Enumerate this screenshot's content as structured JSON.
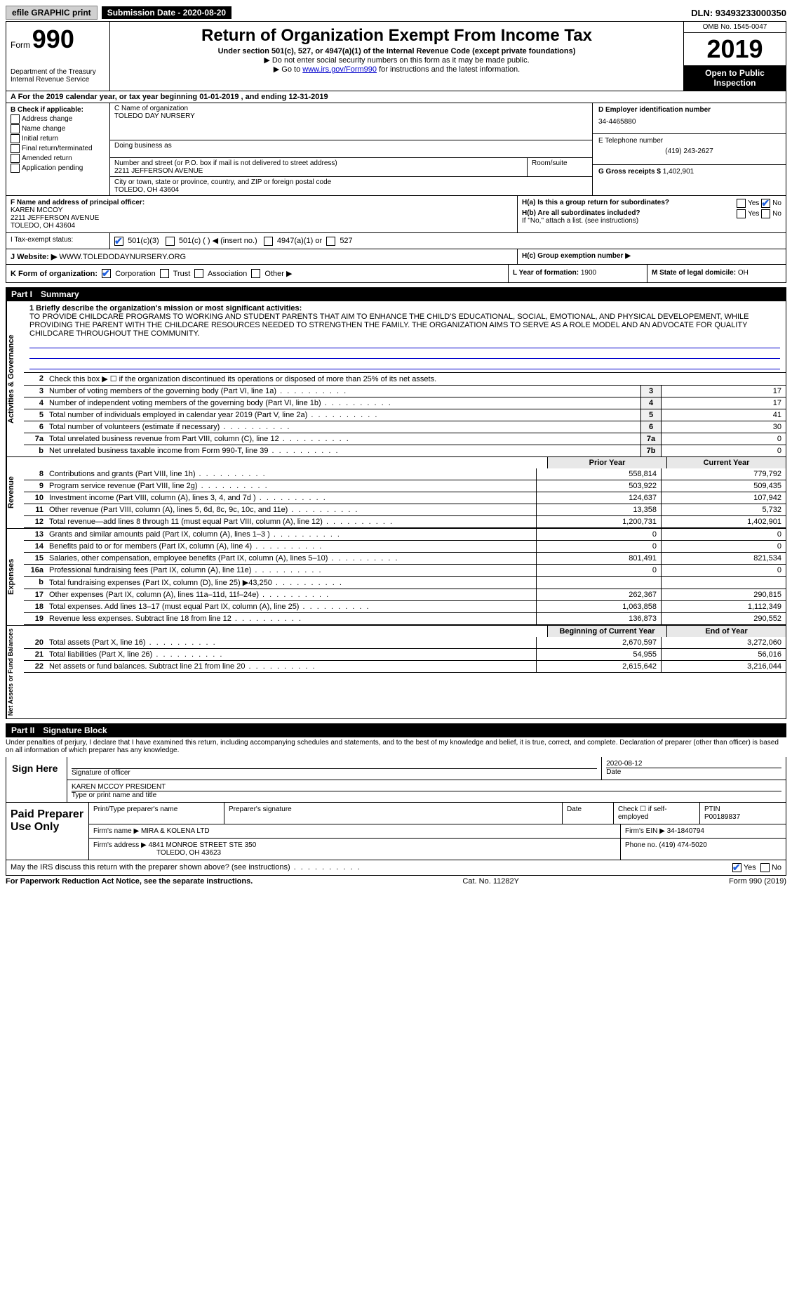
{
  "topbar": {
    "efile_label": "efile GRAPHIC print",
    "submission_date_label": "Submission Date - 2020-08-20",
    "dln_label": "DLN: 93493233000350"
  },
  "header": {
    "form_prefix": "Form",
    "form_number": "990",
    "dept": "Department of the Treasury\nInternal Revenue Service",
    "title": "Return of Organization Exempt From Income Tax",
    "subtitle": "Under section 501(c), 527, or 4947(a)(1) of the Internal Revenue Code (except private foundations)",
    "note1": "▶ Do not enter social security numbers on this form as it may be made public.",
    "note2_prefix": "▶ Go to ",
    "note2_link": "www.irs.gov/Form990",
    "note2_suffix": " for instructions and the latest information.",
    "omb": "OMB No. 1545-0047",
    "year": "2019",
    "open_public": "Open to Public Inspection"
  },
  "tax_year_line": "A For the 2019 calendar year, or tax year beginning 01-01-2019   , and ending 12-31-2019",
  "box_b": {
    "header": "B Check if applicable:",
    "items": [
      "Address change",
      "Name change",
      "Initial return",
      "Final return/terminated",
      "Amended return",
      "Application pending"
    ]
  },
  "box_c": {
    "name_label": "C Name of organization",
    "name": "TOLEDO DAY NURSERY",
    "dba_label": "Doing business as",
    "addr_label": "Number and street (or P.O. box if mail is not delivered to street address)",
    "addr": "2211 JEFFERSON AVENUE",
    "room_label": "Room/suite",
    "city_label": "City or town, state or province, country, and ZIP or foreign postal code",
    "city": "TOLEDO, OH  43604"
  },
  "box_d": {
    "label": "D Employer identification number",
    "value": "34-4465880"
  },
  "box_e": {
    "label": "E Telephone number",
    "value": "(419) 243-2627"
  },
  "box_g": {
    "label": "G Gross receipts $",
    "value": "1,402,901"
  },
  "box_f": {
    "label": "F  Name and address of principal officer:",
    "name": "KAREN MCCOY",
    "addr1": "2211 JEFFERSON AVENUE",
    "addr2": "TOLEDO, OH  43604"
  },
  "box_h": {
    "a_label": "H(a)  Is this a group return for subordinates?",
    "yes": "Yes",
    "no": "No",
    "b_label": "H(b)  Are all subordinates included?",
    "b_note": "If \"No,\" attach a list. (see instructions)",
    "c_label": "H(c)  Group exemption number ▶"
  },
  "box_i": {
    "label": "I  Tax-exempt status:",
    "opts": [
      "501(c)(3)",
      "501(c) (   ) ◀ (insert no.)",
      "4947(a)(1) or",
      "527"
    ]
  },
  "box_j": {
    "label": "J  Website: ▶",
    "value": "WWW.TOLEDODAYNURSERY.ORG"
  },
  "box_k": {
    "label": "K Form of organization:",
    "opts": [
      "Corporation",
      "Trust",
      "Association",
      "Other ▶"
    ]
  },
  "box_l": {
    "label": "L Year of formation:",
    "value": "1900"
  },
  "box_m": {
    "label": "M State of legal domicile:",
    "value": "OH"
  },
  "parts": {
    "p1": "Part I",
    "p1_title": "Summary",
    "p2": "Part II",
    "p2_title": "Signature Block"
  },
  "side_labels": {
    "gov": "Activities & Governance",
    "rev": "Revenue",
    "exp": "Expenses",
    "net": "Net Assets or Fund Balances"
  },
  "summary": {
    "line1_label": "1  Briefly describe the organization's mission or most significant activities:",
    "mission": "TO PROVIDE CHILDCARE PROGRAMS TO WORKING AND STUDENT PARENTS THAT AIM TO ENHANCE THE CHILD'S EDUCATIONAL, SOCIAL, EMOTIONAL, AND PHYSICAL DEVELOPEMENT, WHILE PROVIDING THE PARENT WITH THE CHILDCARE RESOURCES NEEDED TO STRENGTHEN THE FAMILY. THE ORGANIZATION AIMS TO SERVE AS A ROLE MODEL AND AN ADVOCATE FOR QUALITY CHILDCARE THROUGHOUT THE COMMUNITY.",
    "line2": "Check this box ▶ ☐  if the organization discontinued its operations or disposed of more than 25% of its net assets.",
    "rows_gov": [
      {
        "n": "3",
        "d": "Number of voting members of the governing body (Part VI, line 1a)",
        "bn": "3",
        "v": "17"
      },
      {
        "n": "4",
        "d": "Number of independent voting members of the governing body (Part VI, line 1b)",
        "bn": "4",
        "v": "17"
      },
      {
        "n": "5",
        "d": "Total number of individuals employed in calendar year 2019 (Part V, line 2a)",
        "bn": "5",
        "v": "41"
      },
      {
        "n": "6",
        "d": "Total number of volunteers (estimate if necessary)",
        "bn": "6",
        "v": "30"
      },
      {
        "n": "7a",
        "d": "Total unrelated business revenue from Part VIII, column (C), line 12",
        "bn": "7a",
        "v": "0"
      },
      {
        "n": "b",
        "d": "Net unrelated business taxable income from Form 990-T, line 39",
        "bn": "7b",
        "v": "0"
      }
    ],
    "col_headers": {
      "prior": "Prior Year",
      "curr": "Current Year",
      "boy": "Beginning of Current Year",
      "eoy": "End of Year"
    },
    "rows_rev": [
      {
        "n": "8",
        "d": "Contributions and grants (Part VIII, line 1h)",
        "p": "558,814",
        "c": "779,792"
      },
      {
        "n": "9",
        "d": "Program service revenue (Part VIII, line 2g)",
        "p": "503,922",
        "c": "509,435"
      },
      {
        "n": "10",
        "d": "Investment income (Part VIII, column (A), lines 3, 4, and 7d )",
        "p": "124,637",
        "c": "107,942"
      },
      {
        "n": "11",
        "d": "Other revenue (Part VIII, column (A), lines 5, 6d, 8c, 9c, 10c, and 11e)",
        "p": "13,358",
        "c": "5,732"
      },
      {
        "n": "12",
        "d": "Total revenue—add lines 8 through 11 (must equal Part VIII, column (A), line 12)",
        "p": "1,200,731",
        "c": "1,402,901"
      }
    ],
    "rows_exp": [
      {
        "n": "13",
        "d": "Grants and similar amounts paid (Part IX, column (A), lines 1–3 )",
        "p": "0",
        "c": "0"
      },
      {
        "n": "14",
        "d": "Benefits paid to or for members (Part IX, column (A), line 4)",
        "p": "0",
        "c": "0"
      },
      {
        "n": "15",
        "d": "Salaries, other compensation, employee benefits (Part IX, column (A), lines 5–10)",
        "p": "801,491",
        "c": "821,534"
      },
      {
        "n": "16a",
        "d": "Professional fundraising fees (Part IX, column (A), line 11e)",
        "p": "0",
        "c": "0"
      },
      {
        "n": "b",
        "d": "Total fundraising expenses (Part IX, column (D), line 25) ▶43,250",
        "p": "",
        "c": ""
      },
      {
        "n": "17",
        "d": "Other expenses (Part IX, column (A), lines 11a–11d, 11f–24e)",
        "p": "262,367",
        "c": "290,815"
      },
      {
        "n": "18",
        "d": "Total expenses. Add lines 13–17 (must equal Part IX, column (A), line 25)",
        "p": "1,063,858",
        "c": "1,112,349"
      },
      {
        "n": "19",
        "d": "Revenue less expenses. Subtract line 18 from line 12",
        "p": "136,873",
        "c": "290,552"
      }
    ],
    "rows_net": [
      {
        "n": "20",
        "d": "Total assets (Part X, line 16)",
        "p": "2,670,597",
        "c": "3,272,060"
      },
      {
        "n": "21",
        "d": "Total liabilities (Part X, line 26)",
        "p": "54,955",
        "c": "56,016"
      },
      {
        "n": "22",
        "d": "Net assets or fund balances. Subtract line 21 from line 20",
        "p": "2,615,642",
        "c": "3,216,044"
      }
    ]
  },
  "penalties": "Under penalties of perjury, I declare that I have examined this return, including accompanying schedules and statements, and to the best of my knowledge and belief, it is true, correct, and complete. Declaration of preparer (other than officer) is based on all information of which preparer has any knowledge.",
  "sign": {
    "here": "Sign Here",
    "sig_label": "Signature of officer",
    "date": "2020-08-12",
    "date_label": "Date",
    "name": "KAREN MCCOY PRESIDENT",
    "name_label": "Type or print name and title"
  },
  "paid": {
    "label": "Paid Preparer Use Only",
    "h1": "Print/Type preparer's name",
    "h2": "Preparer's signature",
    "h3": "Date",
    "h4": "Check ☐ if self-employed",
    "h5": "PTIN",
    "ptin": "P00189837",
    "firm_name_label": "Firm's name    ▶",
    "firm_name": "MIRA & KOLENA LTD",
    "firm_ein_label": "Firm's EIN ▶",
    "firm_ein": "34-1840794",
    "firm_addr_label": "Firm's address ▶",
    "firm_addr1": "4841 MONROE STREET STE 350",
    "firm_addr2": "TOLEDO, OH  43623",
    "phone_label": "Phone no.",
    "phone": "(419) 474-5020"
  },
  "discuss": "May the IRS discuss this return with the preparer shown above? (see instructions)",
  "footer": {
    "left": "For Paperwork Reduction Act Notice, see the separate instructions.",
    "mid": "Cat. No. 11282Y",
    "right": "Form 990 (2019)"
  }
}
